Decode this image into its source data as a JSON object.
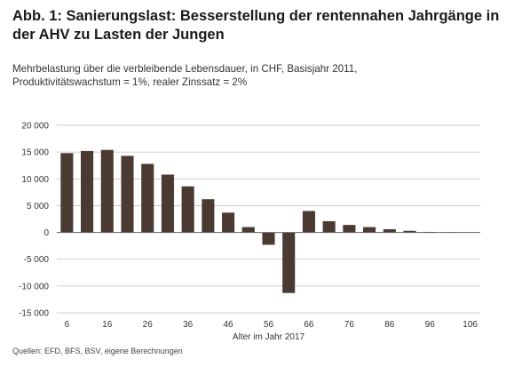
{
  "header": {
    "title_line1": "Abb. 1: Sanierungslast: Besserstellung der rentennahen Jahrgänge in",
    "title_line2": "der AHV zu Lasten der Jungen",
    "subtitle_line1": "Mehrbelastung über die verbleibende Lebensdauer, in CHF, Basisjahr 2011,",
    "subtitle_line2": "Produktivitätswachstum = 1%, realer Zinssatz = 2%"
  },
  "source": "Quellen: EFD, BFS, BSV, eigene Berechnungen",
  "colors": {
    "bar": "#4a3a32",
    "grid": "#bfbfbf",
    "zero_line": "#666666"
  },
  "chart_data": {
    "type": "bar",
    "title": "",
    "xlabel": "Alter im Jahr 2017",
    "ylabel": "",
    "ylim": [
      -15000,
      20000
    ],
    "yticks": [
      20000,
      15000,
      10000,
      5000,
      0,
      -5000,
      -10000,
      -15000
    ],
    "ytick_labels": [
      "20 000",
      "15 000",
      "10 000",
      "5 000",
      "0",
      "-5 000",
      "-10 000",
      "-15 000"
    ],
    "xticks": [
      "6",
      "16",
      "26",
      "36",
      "46",
      "56",
      "66",
      "76",
      "86",
      "96",
      "106"
    ],
    "grid": true,
    "categories": [
      6,
      11,
      16,
      21,
      26,
      31,
      36,
      41,
      46,
      51,
      56,
      61,
      66,
      71,
      76,
      81,
      86,
      91,
      96,
      101,
      106
    ],
    "values": [
      14800,
      15200,
      15400,
      14300,
      12800,
      10800,
      8600,
      6200,
      3700,
      1000,
      -2300,
      -11300,
      4000,
      2100,
      1400,
      1000,
      600,
      300,
      100,
      50,
      0
    ]
  }
}
